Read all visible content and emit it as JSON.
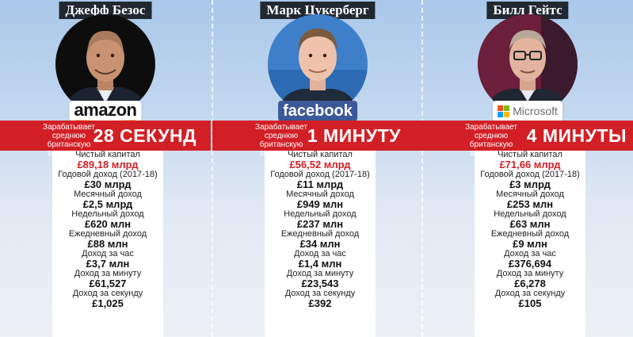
{
  "colors": {
    "band": "#d21f26",
    "highlight": "#d21f26",
    "name_bg": "#222831",
    "facebook": "#3b5998"
  },
  "earning_note": "Зарабатывает среднюю британскую зарплату за",
  "people": [
    {
      "name": "Джефф Безос",
      "company": "amazon",
      "company_logo": "amazon-logo",
      "time": "28 СЕКУНД",
      "stats": [
        {
          "label": "Чистый капитал",
          "value": "£89,18 млрд"
        },
        {
          "label": "Годовой доход (2017-18)",
          "value": "£30 млрд"
        },
        {
          "label": "Месячный доход",
          "value": "£2,5 млрд"
        },
        {
          "label": "Недельный доход",
          "value": "£620 млн"
        },
        {
          "label": "Ежедневный доход",
          "value": "£88 млн"
        },
        {
          "label": "Доход за час",
          "value": "£3,7 млн"
        },
        {
          "label": "Доход за минуту",
          "value": "£61,527"
        },
        {
          "label": "Доход за секунду",
          "value": "£1,025"
        }
      ]
    },
    {
      "name": "Марк Цукерберг",
      "company": "facebook",
      "company_logo": "facebook-logo",
      "time": "1 МИНУТУ",
      "stats": [
        {
          "label": "Чистый капитал",
          "value": "£56,52 млрд"
        },
        {
          "label": "Годовой доход (2017-18)",
          "value": "£11 млрд"
        },
        {
          "label": "Месячный доход",
          "value": "£949 млн"
        },
        {
          "label": "Недельный доход",
          "value": "£237 млн"
        },
        {
          "label": "Ежедневный доход",
          "value": "£34 млн"
        },
        {
          "label": "Доход за час",
          "value": "£1,4 млн"
        },
        {
          "label": "Доход за минуту",
          "value": "£23,543"
        },
        {
          "label": "Доход за секунду",
          "value": "£392"
        }
      ]
    },
    {
      "name": "Билл Гейтс",
      "company": "Microsoft",
      "company_logo": "microsoft-logo",
      "time": "4 МИНУТЫ",
      "stats": [
        {
          "label": "Чистый капитал",
          "value": "£71,66 млрд"
        },
        {
          "label": "Годовой доход (2017-18)",
          "value": "£3 млрд"
        },
        {
          "label": "Месячный доход",
          "value": "£253 млн"
        },
        {
          "label": "Недельный доход",
          "value": "£63 млн"
        },
        {
          "label": "Ежедневный доход",
          "value": "£9 млн"
        },
        {
          "label": "Доход за час",
          "value": "£376,694"
        },
        {
          "label": "Доход за минуту",
          "value": "£6,278"
        },
        {
          "label": "Доход за секунду",
          "value": "£105"
        }
      ]
    }
  ]
}
